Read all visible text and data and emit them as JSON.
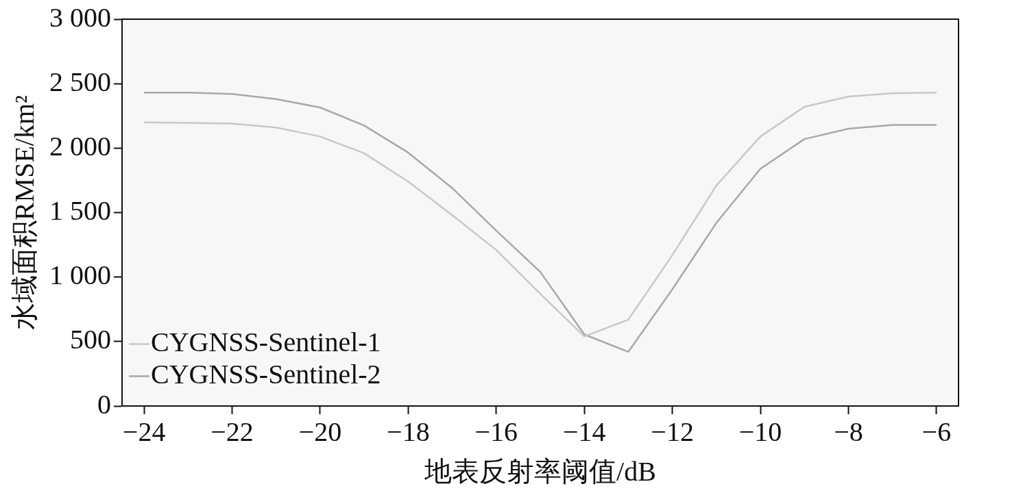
{
  "chart_data": {
    "type": "line",
    "xlabel": "地表反射率阈值/dB",
    "ylabel": "水域面积RMSE/km²",
    "x": [
      -24,
      -23,
      -22,
      -21,
      -20,
      -19,
      -18,
      -17,
      -16,
      -15,
      -14,
      -13,
      -12,
      -11,
      -10,
      -9,
      -8,
      -7,
      -6
    ],
    "series": [
      {
        "name": "CYGNSS-Sentinel-1",
        "color": "#c8c8c8",
        "values": [
          2200,
          2195,
          2190,
          2160,
          2090,
          1960,
          1740,
          1480,
          1210,
          870,
          540,
          670,
          1170,
          1710,
          2090,
          2320,
          2400,
          2425,
          2430
        ]
      },
      {
        "name": "CYGNSS-Sentinel-2",
        "color": "#a8a8a8",
        "values": [
          2430,
          2430,
          2420,
          2380,
          2315,
          2175,
          1965,
          1690,
          1360,
          1040,
          555,
          420,
          905,
          1420,
          1840,
          2070,
          2150,
          2180,
          2180
        ]
      }
    ],
    "xlim": [
      -24.5,
      -5.5
    ],
    "ylim": [
      0,
      3000
    ],
    "xticks": [
      {
        "value": -24,
        "label": "−24"
      },
      {
        "value": -22,
        "label": "−22"
      },
      {
        "value": -20,
        "label": "−20"
      },
      {
        "value": -18,
        "label": "−18"
      },
      {
        "value": -16,
        "label": "−16"
      },
      {
        "value": -14,
        "label": "−14"
      },
      {
        "value": -12,
        "label": "−12"
      },
      {
        "value": -10,
        "label": "−10"
      },
      {
        "value": -8,
        "label": "−8"
      },
      {
        "value": -6,
        "label": "−6"
      }
    ],
    "yticks": [
      0,
      500,
      {
        "value": 1000,
        "label": "1 000"
      },
      {
        "value": 1500,
        "label": "1 500"
      },
      {
        "value": 2000,
        "label": "2 000"
      },
      {
        "value": 2500,
        "label": "2 500"
      },
      {
        "value": 3000,
        "label": "3 000"
      }
    ],
    "grid": false,
    "legend": "bottom left",
    "marker": "none",
    "line_style": "solid"
  }
}
